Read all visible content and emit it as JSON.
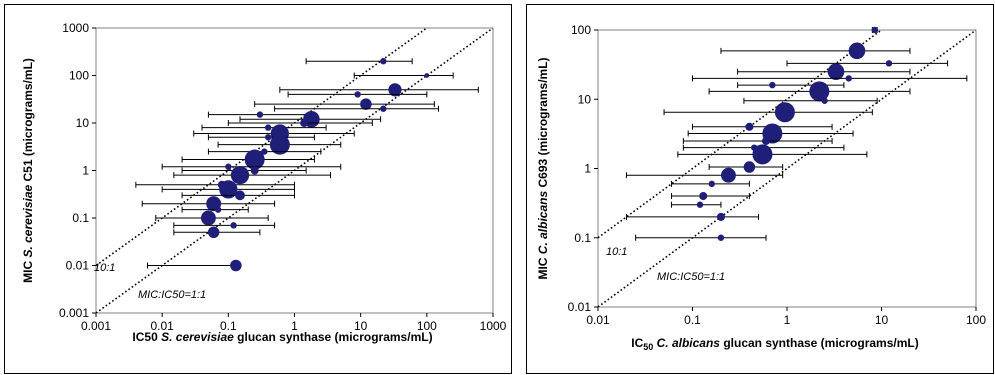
{
  "charts": [
    {
      "id": "left",
      "xlabel_parts": [
        {
          "text": "IC50 ",
          "italic": false
        },
        {
          "text": "S. cerevisiae",
          "italic": true
        },
        {
          "text": " glucan synthase (micrograms/mL)",
          "italic": false
        }
      ],
      "ylabel_parts": [
        {
          "text": "MIC ",
          "italic": false
        },
        {
          "text": "S. cerevisiae",
          "italic": true
        },
        {
          "text": " C51 (micrograms/mL)",
          "italic": false
        }
      ]
    },
    {
      "id": "right",
      "xlabel_parts": [
        {
          "text": "IC",
          "italic": false
        },
        {
          "text": "50",
          "italic": false,
          "sub": true
        },
        {
          "text": " C. albicans",
          "italic": true
        },
        {
          "text": " glucan synthase (micrograms/mL)",
          "italic": false
        }
      ],
      "ylabel_parts": [
        {
          "text": "MIC ",
          "italic": false
        },
        {
          "text": "C. albicans",
          "italic": true
        },
        {
          "text": " C693 (micrograms/mL)",
          "italic": false
        }
      ]
    }
  ],
  "chart_data": [
    {
      "type": "scatter",
      "scale": "log-log",
      "xlim": [
        0.001,
        1000
      ],
      "ylim": [
        0.001,
        1000
      ],
      "xticks": [
        "0.001",
        "0.01",
        "0.1",
        "1",
        "10",
        "100",
        "1000"
      ],
      "yticks": [
        "0.001",
        "0.01",
        "0.1",
        "1",
        "10",
        "100",
        "1000"
      ],
      "reference_lines": [
        {
          "label": "10:1",
          "ratio": 10,
          "style": "dotted"
        },
        {
          "label": "MIC:IC50=1:1",
          "ratio": 1,
          "style": "dotted"
        }
      ],
      "marker_color": "#1f1f7a",
      "points": [
        {
          "x": 22,
          "y": 200,
          "xmin": 1.5,
          "xmax": 60,
          "size": 2
        },
        {
          "x": 100,
          "y": 100,
          "xmin": 8,
          "xmax": 250,
          "size": 1
        },
        {
          "x": 33,
          "y": 50,
          "xmin": 0.6,
          "xmax": 600,
          "size": 6
        },
        {
          "x": 9,
          "y": 40,
          "xmin": 0.8,
          "xmax": 100,
          "size": 2
        },
        {
          "x": 12,
          "y": 25,
          "xmin": 0.25,
          "xmax": 130,
          "size": 5
        },
        {
          "x": 22,
          "y": 20,
          "xmin": 0.5,
          "xmax": 150,
          "size": 2
        },
        {
          "x": 0.3,
          "y": 15,
          "xmin": 0.05,
          "xmax": 2,
          "size": 2
        },
        {
          "x": 1.8,
          "y": 12,
          "xmin": 0.15,
          "xmax": 20,
          "size": 8
        },
        {
          "x": 1.4,
          "y": 10,
          "xmin": 0.1,
          "xmax": 15,
          "size": 3
        },
        {
          "x": 0.4,
          "y": 8,
          "xmin": 0.04,
          "xmax": 3,
          "size": 2
        },
        {
          "x": 0.6,
          "y": 6,
          "xmin": 0.03,
          "xmax": 8,
          "size": 9
        },
        {
          "x": 0.4,
          "y": 5,
          "xmin": 0.05,
          "xmax": 2,
          "size": 2
        },
        {
          "x": 0.6,
          "y": 3.5,
          "xmin": 0.07,
          "xmax": 5,
          "size": 10
        },
        {
          "x": 0.35,
          "y": 2.5,
          "xmin": 0.05,
          "xmax": 2.5,
          "size": 2
        },
        {
          "x": 0.25,
          "y": 1.7,
          "xmin": 0.02,
          "xmax": 2,
          "size": 10
        },
        {
          "x": 0.1,
          "y": 1.2,
          "xmin": 0.01,
          "xmax": 5,
          "size": 2
        },
        {
          "x": 0.25,
          "y": 1.0,
          "xmin": 0.02,
          "xmax": 1.5,
          "size": 3
        },
        {
          "x": 0.15,
          "y": 0.8,
          "xmin": 0.015,
          "xmax": 3.5,
          "size": 9
        },
        {
          "x": 0.08,
          "y": 0.5,
          "xmin": 0.004,
          "xmax": 1.0,
          "size": 3
        },
        {
          "x": 0.1,
          "y": 0.4,
          "xmin": 0.01,
          "xmax": 1.0,
          "size": 9
        },
        {
          "x": 0.15,
          "y": 0.3,
          "xmin": 0.02,
          "xmax": 1.0,
          "size": 4
        },
        {
          "x": 0.06,
          "y": 0.2,
          "xmin": 0.005,
          "xmax": 0.5,
          "size": 7
        },
        {
          "x": 0.07,
          "y": 0.15,
          "xmin": 0.02,
          "xmax": 0.2,
          "size": 2
        },
        {
          "x": 0.05,
          "y": 0.1,
          "xmin": 0.008,
          "xmax": 0.4,
          "size": 7
        },
        {
          "x": 0.12,
          "y": 0.07,
          "xmin": 0.015,
          "xmax": 0.5,
          "size": 2
        },
        {
          "x": 0.06,
          "y": 0.05,
          "xmin": 0.015,
          "xmax": 0.3,
          "size": 5
        },
        {
          "x": 0.13,
          "y": 0.01,
          "xmin": 0.006,
          "xmax": 0.15,
          "size": 5
        }
      ]
    },
    {
      "type": "scatter",
      "scale": "log-log",
      "xlim": [
        0.01,
        100
      ],
      "ylim": [
        0.01,
        100
      ],
      "xticks": [
        "0.01",
        "0.1",
        "1",
        "10",
        "100"
      ],
      "yticks": [
        "0.01",
        "0.1",
        "1",
        "10",
        "100"
      ],
      "reference_lines": [
        {
          "label": "10:1",
          "ratio": 10,
          "style": "dotted"
        },
        {
          "label": "MIC:IC50=1:1",
          "ratio": 1,
          "style": "dotted"
        }
      ],
      "marker_color": "#1f1f7a",
      "points": [
        {
          "x": 8.5,
          "y": 100,
          "xmin": 8.0,
          "xmax": 9.0,
          "size": 2
        },
        {
          "x": 5.5,
          "y": 50,
          "xmin": 0.2,
          "xmax": 20,
          "size": 8
        },
        {
          "x": 12,
          "y": 33,
          "xmin": 1.0,
          "xmax": 50,
          "size": 2
        },
        {
          "x": 3.3,
          "y": 25,
          "xmin": 0.3,
          "xmax": 20,
          "size": 8
        },
        {
          "x": 4.5,
          "y": 20,
          "xmin": 0.1,
          "xmax": 80,
          "size": 2
        },
        {
          "x": 0.7,
          "y": 16,
          "xmin": 0.3,
          "xmax": 4,
          "size": 2
        },
        {
          "x": 2.2,
          "y": 13,
          "xmin": 0.15,
          "xmax": 20,
          "size": 10
        },
        {
          "x": 2.5,
          "y": 9.5,
          "xmin": 0.35,
          "xmax": 9,
          "size": 2
        },
        {
          "x": 0.95,
          "y": 6.5,
          "xmin": 0.05,
          "xmax": 8,
          "size": 10
        },
        {
          "x": 0.4,
          "y": 4.0,
          "xmin": 0.1,
          "xmax": 3,
          "size": 3
        },
        {
          "x": 0.7,
          "y": 3.2,
          "xmin": 0.09,
          "xmax": 5,
          "size": 10
        },
        {
          "x": 0.6,
          "y": 2.5,
          "xmin": 0.08,
          "xmax": 3,
          "size": 3
        },
        {
          "x": 0.45,
          "y": 2.0,
          "xmin": 0.08,
          "xmax": 4,
          "size": 2
        },
        {
          "x": 0.55,
          "y": 1.6,
          "xmin": 0.07,
          "xmax": 7,
          "size": 10
        },
        {
          "x": 0.4,
          "y": 1.05,
          "xmin": 0.15,
          "xmax": 0.9,
          "size": 5
        },
        {
          "x": 0.24,
          "y": 0.8,
          "xmin": 0.02,
          "xmax": 0.9,
          "size": 7
        },
        {
          "x": 0.16,
          "y": 0.6,
          "xmin": 0.06,
          "xmax": 0.4,
          "size": 2
        },
        {
          "x": 0.13,
          "y": 0.4,
          "xmin": 0.06,
          "xmax": 0.4,
          "size": 3
        },
        {
          "x": 0.12,
          "y": 0.3,
          "xmin": 0.06,
          "xmax": 0.2,
          "size": 2
        },
        {
          "x": 0.2,
          "y": 0.2,
          "xmin": 0.02,
          "xmax": 0.5,
          "size": 3
        },
        {
          "x": 0.2,
          "y": 0.1,
          "xmin": 0.025,
          "xmax": 0.6,
          "size": 2
        }
      ]
    }
  ]
}
